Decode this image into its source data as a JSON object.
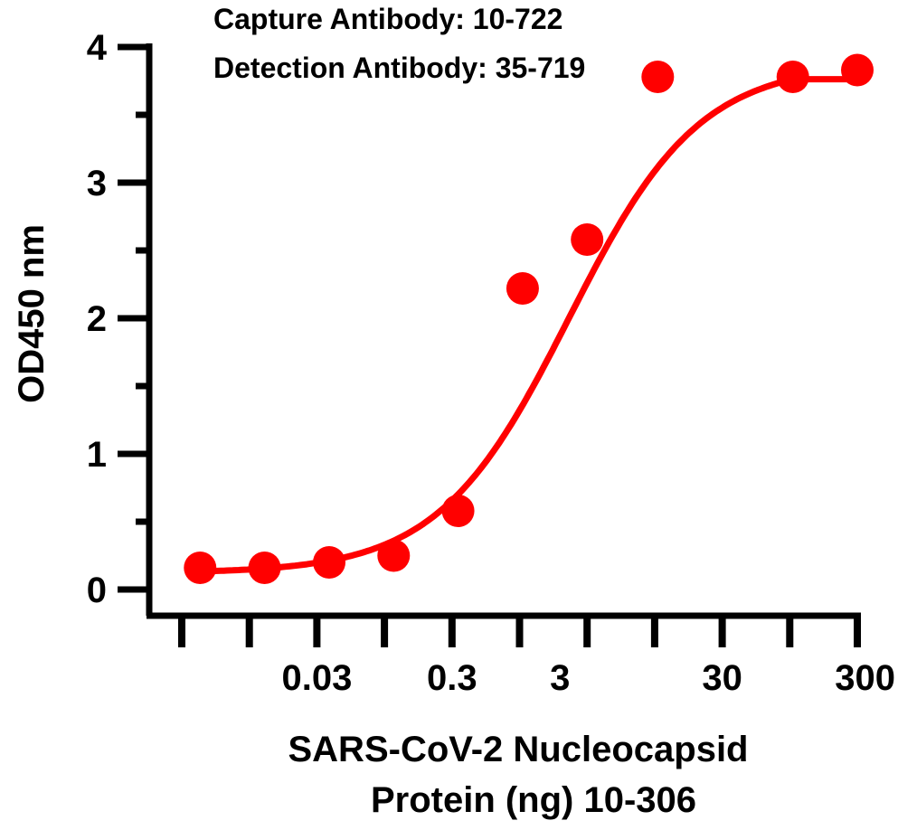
{
  "chart_data": {
    "type": "scatter",
    "title_lines": [
      "Capture Antibody: 10-722",
      "Detection Antibody: 35-719"
    ],
    "ylabel": "OD450 nm",
    "xlabel_lines": [
      "SARS-CoV-2 Nucleocapsid",
      "Protein (ng) 10-306"
    ],
    "x_scale": "log",
    "ylim": [
      0,
      4
    ],
    "y_ticks": [
      0,
      1,
      2,
      3,
      4
    ],
    "x_ticks": [
      0.003,
      0.03,
      0.3,
      3,
      30,
      300
    ],
    "x_tick_labels": [
      "",
      "0.03",
      "0.3",
      "3",
      "30",
      "300"
    ],
    "x_tick_label_positions": [
      0.03,
      0.3,
      3,
      30,
      300
    ],
    "x_tick_label_texts": [
      "0.03",
      "0.3",
      "3",
      "30",
      "300"
    ],
    "color": "#ff0000",
    "series": [
      {
        "x": [
          0.0041,
          0.0123,
          0.037,
          0.111,
          0.333,
          1,
          3,
          10,
          100,
          300
        ],
        "y": [
          0.16,
          0.16,
          0.2,
          0.25,
          0.58,
          2.22,
          2.58,
          3.78,
          3.78,
          3.83
        ]
      }
    ],
    "fit": {
      "bottom": 0.12,
      "top": 3.88,
      "ec50": 2.2,
      "hill": 0.9
    }
  }
}
